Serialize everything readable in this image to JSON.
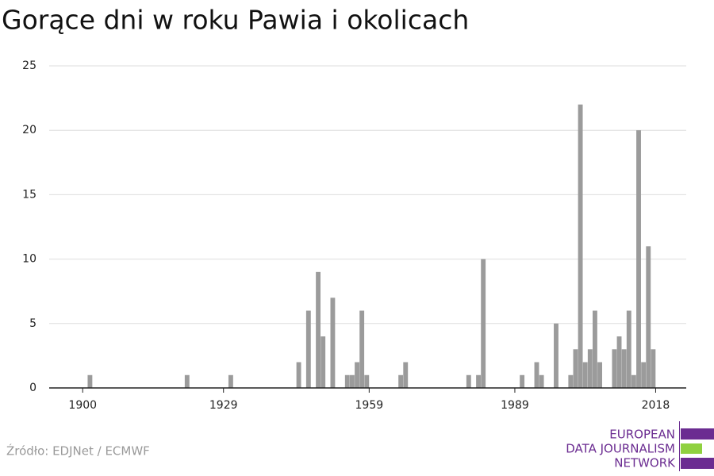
{
  "chart_data": {
    "type": "bar",
    "title": "Gorące dni w roku Pawia i okolicach",
    "x": [
      1901,
      1921,
      1930,
      1944,
      1946,
      1948,
      1949,
      1951,
      1954,
      1955,
      1956,
      1957,
      1958,
      1965,
      1966,
      1979,
      1981,
      1982,
      1990,
      1993,
      1994,
      1997,
      2000,
      2001,
      2002,
      2003,
      2004,
      2005,
      2006,
      2009,
      2010,
      2011,
      2012,
      2013,
      2014,
      2015,
      2016,
      2017
    ],
    "values": [
      1,
      1,
      1,
      2,
      6,
      9,
      4,
      7,
      1,
      1,
      2,
      6,
      1,
      1,
      2,
      1,
      1,
      10,
      1,
      2,
      1,
      5,
      1,
      3,
      22,
      2,
      3,
      6,
      2,
      3,
      4,
      3,
      6,
      1,
      20,
      2,
      11,
      3
    ],
    "color": "#9b9b9b",
    "xlim": [
      1893.1,
      2024.3
    ],
    "xticks": [
      1900,
      1929,
      1959,
      1989,
      2018
    ],
    "ylim": [
      0,
      25
    ],
    "yticks": [
      0,
      5,
      10,
      15,
      20,
      25
    ],
    "grid": true,
    "source": "Źródło: EDJNet / ECMWF",
    "logo": [
      "EUROPEAN",
      "DATA JOURNALISM",
      "NETWORK"
    ]
  }
}
